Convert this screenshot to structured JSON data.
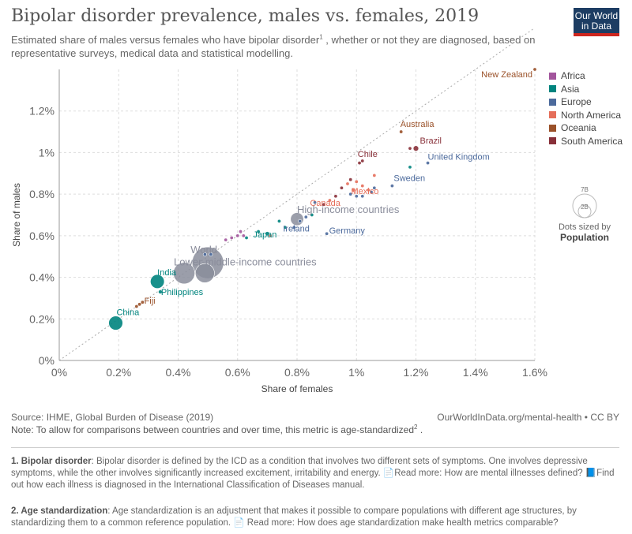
{
  "header": {
    "title": "Bipolar disorder prevalence, males vs. females, 2019",
    "subtitle_pre": "Estimated share of males versus females who have bipolar disorder",
    "subtitle_sup": "1",
    "subtitle_post": " , whether or not they are diagnosed, based on representative surveys, medical data and statistical modelling.",
    "logo_line1": "Our World",
    "logo_line2": "in Data"
  },
  "colors": {
    "Africa": "#a2559c",
    "Asia": "#00847e",
    "Europe": "#4c6a9c",
    "North America": "#e56e5a",
    "Oceania": "#9a5129",
    "South America": "#883039",
    "aggregate": "#8a8d9b"
  },
  "legend": {
    "items": [
      "Africa",
      "Asia",
      "Europe",
      "North America",
      "Oceania",
      "South America"
    ],
    "size_big": "7B",
    "size_small": "2B",
    "size_caption": "Dots sized by",
    "size_var": "Population"
  },
  "chart_data": {
    "type": "scatter",
    "title": "Bipolar disorder prevalence, males vs. females, 2019",
    "xlabel": "Share of females",
    "ylabel": "Share of males",
    "xlim": [
      0,
      1.6
    ],
    "ylim": [
      0,
      1.4
    ],
    "x_ticks": [
      "0%",
      "0.2%",
      "0.4%",
      "0.6%",
      "0.8%",
      "1%",
      "1.2%",
      "1.4%",
      "1.6%"
    ],
    "y_ticks": [
      "0%",
      "0.2%",
      "0.4%",
      "0.6%",
      "0.8%",
      "1%",
      "1.2%"
    ],
    "x_tick_values": [
      0,
      0.2,
      0.4,
      0.6,
      0.8,
      1.0,
      1.2,
      1.4,
      1.6
    ],
    "y_tick_values": [
      0,
      0.2,
      0.4,
      0.6,
      0.8,
      1.0,
      1.2
    ],
    "grid": true,
    "reference_line": "x = y",
    "labeled_points": [
      {
        "name": "New Zealand",
        "region": "Oceania",
        "x": 1.6,
        "y": 1.4,
        "pop": 0.005
      },
      {
        "name": "Australia",
        "region": "Oceania",
        "x": 1.15,
        "y": 1.1,
        "pop": 0.025
      },
      {
        "name": "Brazil",
        "region": "South America",
        "x": 1.2,
        "y": 1.02,
        "pop": 0.21
      },
      {
        "name": "United Kingdom",
        "region": "Europe",
        "x": 1.24,
        "y": 0.95,
        "pop": 0.067
      },
      {
        "name": "Chile",
        "region": "South America",
        "x": 1.02,
        "y": 0.96,
        "pop": 0.019
      },
      {
        "name": "Sweden",
        "region": "Europe",
        "x": 1.12,
        "y": 0.84,
        "pop": 0.01
      },
      {
        "name": "Mexico",
        "region": "North America",
        "x": 0.99,
        "y": 0.82,
        "pop": 0.13
      },
      {
        "name": "Canada",
        "region": "North America",
        "x": 0.91,
        "y": 0.77,
        "pop": 0.038
      },
      {
        "name": "High-income countries",
        "region": "aggregate",
        "x": 0.8,
        "y": 0.68,
        "pop": 1.2
      },
      {
        "name": "Germany",
        "region": "Europe",
        "x": 0.9,
        "y": 0.61,
        "pop": 0.083
      },
      {
        "name": "Ireland",
        "region": "Europe",
        "x": 0.79,
        "y": 0.64,
        "pop": 0.005
      },
      {
        "name": "Japan",
        "region": "Asia",
        "x": 0.7,
        "y": 0.61,
        "pop": 0.126
      },
      {
        "name": "World",
        "region": "aggregate",
        "x": 0.5,
        "y": 0.47,
        "pop": 7.7
      },
      {
        "name": "Lower-middle-income countries",
        "region": "aggregate",
        "x": 0.42,
        "y": 0.42,
        "pop": 3.3
      },
      {
        "name": "India",
        "region": "Asia",
        "x": 0.33,
        "y": 0.38,
        "pop": 1.38
      },
      {
        "name": "Philippines",
        "region": "Asia",
        "x": 0.34,
        "y": 0.33,
        "pop": 0.11
      },
      {
        "name": "Fiji",
        "region": "Oceania",
        "x": 0.27,
        "y": 0.27,
        "pop": 0.0009
      },
      {
        "name": "China",
        "region": "Asia",
        "x": 0.19,
        "y": 0.18,
        "pop": 1.4
      }
    ],
    "other_points": [
      {
        "region": "aggregate",
        "x": 0.49,
        "y": 0.42,
        "pop": 2.6
      },
      {
        "region": "Europe",
        "x": 0.49,
        "y": 0.51,
        "pop": 0.05
      },
      {
        "region": "Europe",
        "x": 0.51,
        "y": 0.51,
        "pop": 0.03
      },
      {
        "region": "Africa",
        "x": 0.56,
        "y": 0.58,
        "pop": 0.03
      },
      {
        "region": "Africa",
        "x": 0.58,
        "y": 0.59,
        "pop": 0.03
      },
      {
        "region": "Africa",
        "x": 0.6,
        "y": 0.6,
        "pop": 0.03
      },
      {
        "region": "Africa",
        "x": 0.61,
        "y": 0.62,
        "pop": 0.05
      },
      {
        "region": "Africa",
        "x": 0.62,
        "y": 0.6,
        "pop": 0.03
      },
      {
        "region": "Asia",
        "x": 0.63,
        "y": 0.59,
        "pop": 0.03
      },
      {
        "region": "Asia",
        "x": 0.67,
        "y": 0.62,
        "pop": 0.03
      },
      {
        "region": "Asia",
        "x": 0.74,
        "y": 0.67,
        "pop": 0.03
      },
      {
        "region": "North America",
        "x": 0.71,
        "y": 0.6,
        "pop": 0.01
      },
      {
        "region": "Asia",
        "x": 0.76,
        "y": 0.64,
        "pop": 0.02
      },
      {
        "region": "Europe",
        "x": 0.81,
        "y": 0.67,
        "pop": 0.02
      },
      {
        "region": "Europe",
        "x": 0.83,
        "y": 0.69,
        "pop": 0.02
      },
      {
        "region": "Asia",
        "x": 0.85,
        "y": 0.7,
        "pop": 0.02
      },
      {
        "region": "Europe",
        "x": 0.86,
        "y": 0.76,
        "pop": 0.02
      },
      {
        "region": "South America",
        "x": 0.89,
        "y": 0.75,
        "pop": 0.02
      },
      {
        "region": "South America",
        "x": 0.93,
        "y": 0.79,
        "pop": 0.03
      },
      {
        "region": "South America",
        "x": 0.95,
        "y": 0.83,
        "pop": 0.04
      },
      {
        "region": "North America",
        "x": 0.97,
        "y": 0.85,
        "pop": 0.01
      },
      {
        "region": "North America",
        "x": 1.0,
        "y": 0.86,
        "pop": 0.01
      },
      {
        "region": "North America",
        "x": 1.02,
        "y": 0.84,
        "pop": 0.01
      },
      {
        "region": "North America",
        "x": 1.06,
        "y": 0.89,
        "pop": 0.01
      },
      {
        "region": "North America",
        "x": 1.04,
        "y": 0.82,
        "pop": 0.01
      },
      {
        "region": "Europe",
        "x": 1.0,
        "y": 0.79,
        "pop": 0.04
      },
      {
        "region": "Europe",
        "x": 1.02,
        "y": 0.79,
        "pop": 0.04
      },
      {
        "region": "Europe",
        "x": 1.05,
        "y": 0.81,
        "pop": 0.04
      },
      {
        "region": "Europe",
        "x": 1.06,
        "y": 0.83,
        "pop": 0.03
      },
      {
        "region": "South America",
        "x": 0.98,
        "y": 0.87,
        "pop": 0.02
      },
      {
        "region": "South America",
        "x": 1.01,
        "y": 0.95,
        "pop": 0.02
      },
      {
        "region": "South America",
        "x": 1.18,
        "y": 1.02,
        "pop": 0.02
      },
      {
        "region": "Asia",
        "x": 1.18,
        "y": 0.93,
        "pop": 0.01
      },
      {
        "region": "Europe",
        "x": 0.98,
        "y": 0.8,
        "pop": 0.01
      },
      {
        "region": "Oceania",
        "x": 0.26,
        "y": 0.26,
        "pop": 0.001
      },
      {
        "region": "Oceania",
        "x": 0.28,
        "y": 0.28,
        "pop": 0.001
      }
    ]
  },
  "footer": {
    "source": "Source: IHME, Global Burden of Disease (2019)",
    "credit": "OurWorldInData.org/mental-health • CC BY",
    "note_pre": "Note: To allow for comparisons between countries and over time, this metric is age-standardized",
    "note_sup": "2",
    "note_post": " ."
  },
  "footnotes": {
    "fn1_label": "1. Bipolar disorder",
    "fn1_text": ": Bipolar disorder is defined by the ICD as a condition that involves two different sets of symptoms. One involves depressive symptoms, while the other involves significantly increased excitement, irritability and energy. ",
    "fn1_link1": "Read more: How are mental illnesses defined?",
    "fn1_link2": "Find out how each illness is diagnosed in the International Classification of Diseases manual.",
    "fn2_label": "2. Age standardization",
    "fn2_text": ": Age standardization is an adjustment that makes it possible to compare populations with different age structures, by standardizing them to a common reference population. ",
    "fn2_link": " Read more: How does age standardization make health metrics comparable?"
  }
}
